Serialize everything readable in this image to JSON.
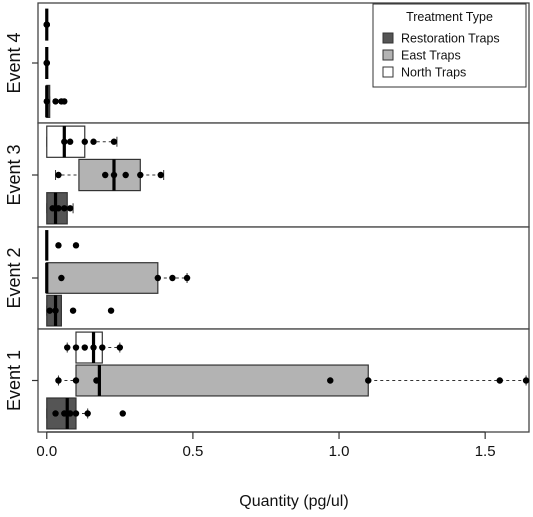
{
  "chart_data": {
    "type": "boxplot",
    "xlabel": "Quantity (pg/ul)",
    "xlim": [
      -0.03,
      1.65
    ],
    "x_ticks": [
      {
        "value": 0,
        "label": "0.0"
      },
      {
        "value": 0.5,
        "label": "0.5"
      },
      {
        "value": 1.0,
        "label": "1.0"
      },
      {
        "value": 1.5,
        "label": "1.5"
      }
    ],
    "legend": {
      "title": "Treatment Type",
      "placement": "top-right",
      "entries": [
        {
          "name": "Restoration Traps",
          "color": "#555555"
        },
        {
          "name": "East Traps",
          "color": "#b3b3b3"
        },
        {
          "name": "North Traps",
          "color": "#ffffff"
        }
      ]
    },
    "panels": [
      {
        "label": "Event 4",
        "groups": [
          {
            "series": "North Traps",
            "min": 0,
            "q1": 0,
            "median": 0,
            "q3": 0,
            "max": 0,
            "points": [
              0,
              0,
              0
            ]
          },
          {
            "series": "East Traps",
            "min": 0,
            "q1": 0,
            "median": 0,
            "q3": 0,
            "max": 0,
            "points": [
              0,
              0,
              0
            ]
          },
          {
            "series": "Restoration Traps",
            "min": 0,
            "q1": 0,
            "median": 0,
            "q3": 0.01,
            "max": 0.01,
            "points": [
              0,
              0.03,
              0.05,
              0.06
            ]
          }
        ]
      },
      {
        "label": "Event 3",
        "groups": [
          {
            "series": "North Traps",
            "min": 0,
            "q1": 0,
            "median": 0.06,
            "q3": 0.13,
            "max": 0.24,
            "points": [
              0.06,
              0.08,
              0.13,
              0.16,
              0.23
            ]
          },
          {
            "series": "East Traps",
            "min": 0.03,
            "q1": 0.11,
            "median": 0.23,
            "q3": 0.32,
            "max": 0.4,
            "points": [
              0.04,
              0.2,
              0.23,
              0.27,
              0.32,
              0.39
            ]
          },
          {
            "series": "Restoration Traps",
            "min": 0,
            "q1": 0,
            "median": 0.03,
            "q3": 0.07,
            "max": 0.09,
            "points": [
              0.02,
              0.04,
              0.06,
              0.08
            ]
          }
        ]
      },
      {
        "label": "Event 2",
        "groups": [
          {
            "series": "North Traps",
            "min": 0,
            "q1": 0,
            "median": 0,
            "q3": 0,
            "max": 0,
            "points": [
              0.04,
              0.1
            ]
          },
          {
            "series": "East Traps",
            "min": 0,
            "q1": 0,
            "median": 0,
            "q3": 0.38,
            "max": 0.48,
            "points": [
              0.05,
              0.38,
              0.43,
              0.48
            ]
          },
          {
            "series": "Restoration Traps",
            "min": 0,
            "q1": 0,
            "median": 0.03,
            "q3": 0.05,
            "max": 0.05,
            "points": [
              0.01,
              0.03,
              0.09,
              0.22
            ]
          }
        ]
      },
      {
        "label": "Event 1",
        "groups": [
          {
            "series": "North Traps",
            "min": 0.07,
            "q1": 0.1,
            "median": 0.16,
            "q3": 0.19,
            "max": 0.25,
            "points": [
              0.07,
              0.1,
              0.13,
              0.16,
              0.19,
              0.25
            ]
          },
          {
            "series": "East Traps",
            "min": 0.04,
            "q1": 0.1,
            "median": 0.18,
            "q3": 1.1,
            "max": 1.64,
            "points": [
              0.04,
              0.1,
              0.17,
              0.97,
              1.1,
              1.55,
              1.64
            ]
          },
          {
            "series": "Restoration Traps",
            "min": 0,
            "q1": 0,
            "median": 0.07,
            "q3": 0.1,
            "max": 0.14,
            "points": [
              0.03,
              0.06,
              0.08,
              0.1,
              0.14,
              0.26
            ]
          }
        ]
      }
    ]
  }
}
